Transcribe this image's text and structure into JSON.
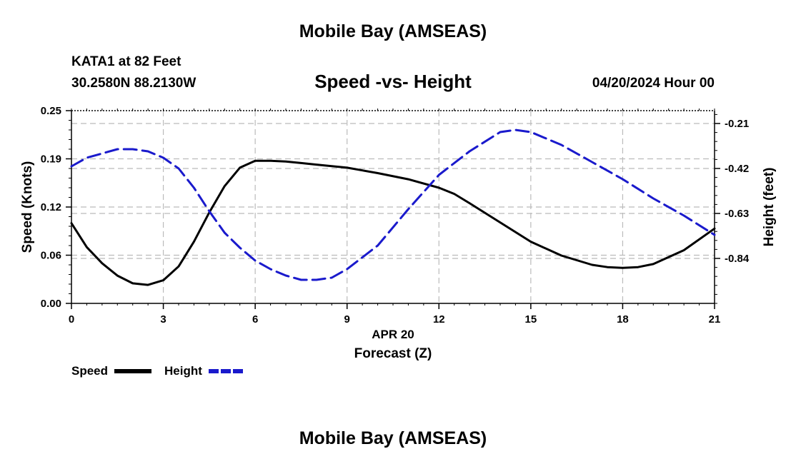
{
  "header": {
    "title": "Mobile Bay (AMSEAS)",
    "station": "KATA1 at 82 Feet",
    "coords": "30.2580N  88.2130W",
    "chart_title": "Speed -vs- Height",
    "date": "04/20/2024 Hour 00"
  },
  "footer": {
    "title": "Mobile Bay (AMSEAS)"
  },
  "chart_data": {
    "type": "line",
    "title": "Speed -vs- Height",
    "xlabel": "APR 20",
    "xlabel2": "Forecast (Z)",
    "ylabel": "Speed (Knots)",
    "y2label": "Height (feet)",
    "xlim": [
      0,
      21
    ],
    "ylim": [
      0,
      0.25
    ],
    "y2lim": [
      -1.05,
      -0.15
    ],
    "x_ticks": [
      "0",
      "3",
      "6",
      "9",
      "12",
      "15",
      "18",
      "21"
    ],
    "y_ticks": [
      "0.00",
      "0.06",
      "0.12",
      "0.19",
      "0.25"
    ],
    "y_tick_values": [
      0,
      0.0625,
      0.125,
      0.1875,
      0.25
    ],
    "y2_ticks": [
      "-0.21",
      "-0.42",
      "-0.63",
      "-0.84"
    ],
    "y2_tick_values": [
      -0.21,
      -0.42,
      -0.63,
      -0.84
    ],
    "grid": true,
    "legend_position": "bottom-left",
    "series": [
      {
        "name": "Speed",
        "color": "#000000",
        "dash": "solid",
        "axis": "left",
        "x": [
          0,
          0.5,
          1,
          1.5,
          2,
          2.5,
          3,
          3.5,
          4,
          4.5,
          5,
          5.5,
          6,
          6.5,
          7,
          7.5,
          8,
          9,
          10,
          11,
          12,
          12.5,
          13,
          14,
          15,
          16,
          17,
          17.5,
          18,
          18.5,
          19,
          20,
          21
        ],
        "values": [
          0.104,
          0.073,
          0.052,
          0.036,
          0.026,
          0.024,
          0.03,
          0.048,
          0.08,
          0.118,
          0.152,
          0.176,
          0.185,
          0.185,
          0.184,
          0.182,
          0.18,
          0.176,
          0.169,
          0.161,
          0.15,
          0.142,
          0.13,
          0.105,
          0.08,
          0.062,
          0.05,
          0.047,
          0.046,
          0.047,
          0.051,
          0.069,
          0.097
        ]
      },
      {
        "name": "Height",
        "color": "#1a1acc",
        "dash": "dashed",
        "axis": "right",
        "x": [
          0,
          0.5,
          1,
          1.5,
          2,
          2.5,
          3,
          3.5,
          4,
          4.5,
          5,
          5.5,
          6,
          6.5,
          7,
          7.5,
          8,
          8.5,
          9,
          10,
          11,
          12,
          13,
          14,
          14.5,
          15,
          16,
          17,
          18,
          19,
          20,
          21
        ],
        "values": [
          -0.41,
          -0.37,
          -0.35,
          -0.33,
          -0.33,
          -0.34,
          -0.37,
          -0.42,
          -0.51,
          -0.62,
          -0.72,
          -0.79,
          -0.85,
          -0.89,
          -0.92,
          -0.94,
          -0.94,
          -0.93,
          -0.89,
          -0.78,
          -0.61,
          -0.45,
          -0.34,
          -0.25,
          -0.24,
          -0.25,
          -0.31,
          -0.39,
          -0.47,
          -0.56,
          -0.64,
          -0.73
        ]
      }
    ]
  }
}
